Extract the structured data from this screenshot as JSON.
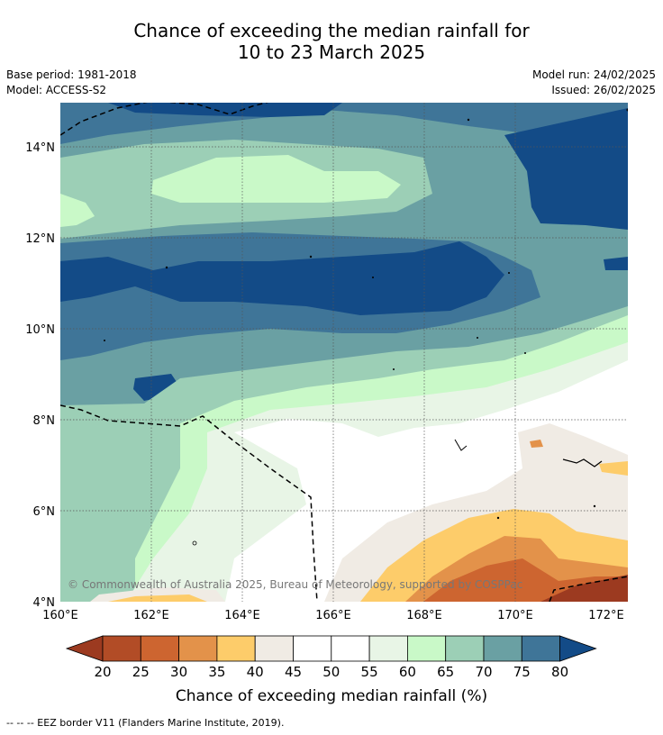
{
  "header": {
    "title_line1": "Chance of exceeding the median rainfall for",
    "title_line2": "10 to 23 March 2025",
    "base_period": "Base period: 1981-2018",
    "model": "Model: ACCESS-S2",
    "model_run": "Model run: 24/02/2025",
    "issued": "Issued: 26/02/2025"
  },
  "map": {
    "x_ticks": [
      "160°E",
      "162°E",
      "164°E",
      "166°E",
      "168°E",
      "170°E",
      "172°E"
    ],
    "y_ticks": [
      "14°N",
      "12°N",
      "10°N",
      "8°N",
      "6°N",
      "4°N"
    ],
    "copyright": "© Commonwealth of Australia 2025, Bureau of Meteorology, supported by COSPPac"
  },
  "colorbar": {
    "labels": [
      "20",
      "25",
      "30",
      "35",
      "40",
      "45",
      "50",
      "55",
      "60",
      "65",
      "70",
      "75",
      "80"
    ],
    "colors": [
      "#9c3a20",
      "#b24c26",
      "#cd6530",
      "#e3924a",
      "#fdcc6a",
      "#f0ebe4",
      "#ffffff",
      "#ffffff",
      "#e8f5e6",
      "#c9f9c8",
      "#9ccfb6",
      "#6aa0a3",
      "#3f7598",
      "#134b87"
    ],
    "title": "Chance of exceeding median rainfall (%)"
  },
  "footer": {
    "eez_note": "--  --  -- EEZ border V11 (Flanders Marine Institute, 2019)."
  }
}
